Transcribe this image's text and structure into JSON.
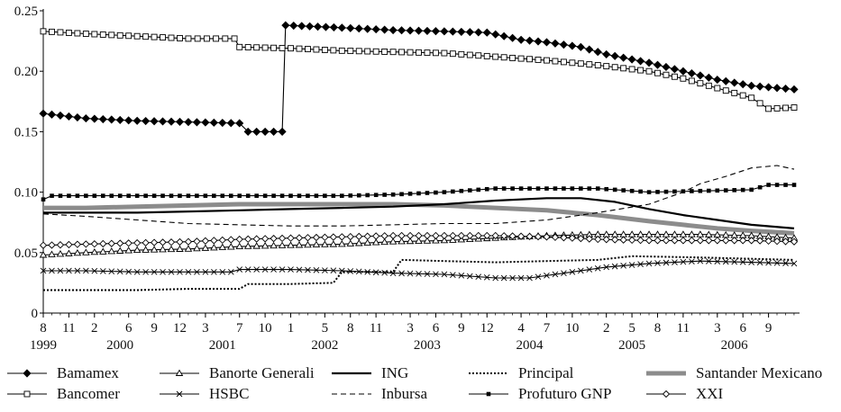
{
  "chart_data": {
    "type": "line",
    "title": "",
    "xlabel": "",
    "ylabel": "",
    "ylim": [
      0,
      0.25
    ],
    "y_ticks": [
      "0",
      "0.05",
      "0.10",
      "0.15",
      "0.20",
      "0.25"
    ],
    "grid": false,
    "legend_position": "bottom",
    "x_ticks": [
      {
        "label": "8",
        "t": 1999.583
      },
      {
        "label": "11",
        "t": 1999.833
      },
      {
        "label": "2",
        "t": 2000.083
      },
      {
        "label": "6",
        "t": 2000.417
      },
      {
        "label": "9",
        "t": 2000.667
      },
      {
        "label": "12",
        "t": 2000.917
      },
      {
        "label": "3",
        "t": 2001.167
      },
      {
        "label": "7",
        "t": 2001.5
      },
      {
        "label": "10",
        "t": 2001.75
      },
      {
        "label": "1",
        "t": 2002.0
      },
      {
        "label": "5",
        "t": 2002.333
      },
      {
        "label": "8",
        "t": 2002.583
      },
      {
        "label": "11",
        "t": 2002.833
      },
      {
        "label": "3",
        "t": 2003.167
      },
      {
        "label": "6",
        "t": 2003.417
      },
      {
        "label": "9",
        "t": 2003.667
      },
      {
        "label": "12",
        "t": 2003.917
      },
      {
        "label": "4",
        "t": 2004.25
      },
      {
        "label": "7",
        "t": 2004.5
      },
      {
        "label": "10",
        "t": 2004.75
      },
      {
        "label": "2",
        "t": 2005.083
      },
      {
        "label": "5",
        "t": 2005.333
      },
      {
        "label": "8",
        "t": 2005.583
      },
      {
        "label": "11",
        "t": 2005.833
      },
      {
        "label": "3",
        "t": 2006.167
      },
      {
        "label": "6",
        "t": 2006.417
      },
      {
        "label": "9",
        "t": 2006.667
      }
    ],
    "year_labels": [
      {
        "label": "1999",
        "t": 1999.583
      },
      {
        "label": "2000",
        "t": 2000.333
      },
      {
        "label": "2001",
        "t": 2001.333
      },
      {
        "label": "2002",
        "t": 2002.333
      },
      {
        "label": "2003",
        "t": 2003.333
      },
      {
        "label": "2004",
        "t": 2004.333
      },
      {
        "label": "2005",
        "t": 2005.333
      },
      {
        "label": "2006",
        "t": 2006.333
      }
    ],
    "x_range": [
      1999.583,
      2006.917
    ],
    "series": [
      {
        "name": "Bamamex",
        "style": "line-diamond-filled",
        "color": "#000000",
        "points": [
          [
            1999.583,
            0.165
          ],
          [
            2000.0,
            0.161
          ],
          [
            2000.5,
            0.159
          ],
          [
            2001.0,
            0.158
          ],
          [
            2001.5,
            0.157
          ],
          [
            2001.583,
            0.15
          ],
          [
            2001.917,
            0.15
          ],
          [
            2001.95,
            0.238
          ],
          [
            2002.5,
            0.236
          ],
          [
            2003.0,
            0.234
          ],
          [
            2003.5,
            0.233
          ],
          [
            2003.917,
            0.232
          ],
          [
            2004.25,
            0.226
          ],
          [
            2004.5,
            0.224
          ],
          [
            2004.833,
            0.22
          ],
          [
            2005.083,
            0.214
          ],
          [
            2005.5,
            0.207
          ],
          [
            2005.833,
            0.2
          ],
          [
            2006.167,
            0.193
          ],
          [
            2006.5,
            0.188
          ],
          [
            2006.917,
            0.185
          ]
        ]
      },
      {
        "name": "Bancomer",
        "style": "line-square-open",
        "color": "#000000",
        "points": [
          [
            1999.583,
            0.233
          ],
          [
            2000.0,
            0.231
          ],
          [
            2000.5,
            0.229
          ],
          [
            2001.0,
            0.227
          ],
          [
            2001.45,
            0.227
          ],
          [
            2001.5,
            0.22
          ],
          [
            2002.0,
            0.219
          ],
          [
            2002.5,
            0.217
          ],
          [
            2003.0,
            0.216
          ],
          [
            2003.5,
            0.215
          ],
          [
            2004.0,
            0.212
          ],
          [
            2004.5,
            0.209
          ],
          [
            2005.0,
            0.205
          ],
          [
            2005.5,
            0.2
          ],
          [
            2005.833,
            0.194
          ],
          [
            2006.167,
            0.186
          ],
          [
            2006.5,
            0.178
          ],
          [
            2006.667,
            0.169
          ],
          [
            2006.917,
            0.17
          ]
        ]
      },
      {
        "name": "Banorte Generali",
        "style": "line-triangle-open",
        "color": "#000000",
        "points": [
          [
            1999.583,
            0.048
          ],
          [
            2000.0,
            0.05
          ],
          [
            2000.5,
            0.052
          ],
          [
            2001.0,
            0.053
          ],
          [
            2001.5,
            0.055
          ],
          [
            2002.0,
            0.056
          ],
          [
            2002.5,
            0.057
          ],
          [
            2003.0,
            0.059
          ],
          [
            2003.5,
            0.06
          ],
          [
            2004.0,
            0.062
          ],
          [
            2004.5,
            0.064
          ],
          [
            2005.0,
            0.065
          ],
          [
            2005.5,
            0.065
          ],
          [
            2006.0,
            0.065
          ],
          [
            2006.5,
            0.064
          ],
          [
            2006.917,
            0.062
          ]
        ]
      },
      {
        "name": "HSBC",
        "style": "line-star",
        "color": "#000000",
        "points": [
          [
            1999.583,
            0.035
          ],
          [
            2000.0,
            0.035
          ],
          [
            2000.5,
            0.034
          ],
          [
            2001.0,
            0.034
          ],
          [
            2001.417,
            0.034
          ],
          [
            2001.5,
            0.036
          ],
          [
            2002.0,
            0.036
          ],
          [
            2002.5,
            0.035
          ],
          [
            2003.0,
            0.033
          ],
          [
            2003.5,
            0.032
          ],
          [
            2004.0,
            0.029
          ],
          [
            2004.333,
            0.029
          ],
          [
            2004.75,
            0.034
          ],
          [
            2005.083,
            0.038
          ],
          [
            2005.5,
            0.041
          ],
          [
            2006.0,
            0.043
          ],
          [
            2006.5,
            0.042
          ],
          [
            2006.917,
            0.041
          ]
        ]
      },
      {
        "name": "ING",
        "style": "line-solid",
        "color": "#000000",
        "points": [
          [
            1999.583,
            0.083
          ],
          [
            2000.0,
            0.083
          ],
          [
            2000.5,
            0.083
          ],
          [
            2001.0,
            0.084
          ],
          [
            2001.5,
            0.085
          ],
          [
            2002.0,
            0.086
          ],
          [
            2002.5,
            0.087
          ],
          [
            2003.0,
            0.088
          ],
          [
            2003.5,
            0.09
          ],
          [
            2004.0,
            0.093
          ],
          [
            2004.5,
            0.095
          ],
          [
            2004.833,
            0.095
          ],
          [
            2005.167,
            0.092
          ],
          [
            2005.5,
            0.086
          ],
          [
            2005.833,
            0.081
          ],
          [
            2006.167,
            0.077
          ],
          [
            2006.5,
            0.073
          ],
          [
            2006.917,
            0.07
          ]
        ]
      },
      {
        "name": "Inbursa",
        "style": "dashed",
        "color": "#000000",
        "points": [
          [
            1999.583,
            0.082
          ],
          [
            2000.0,
            0.08
          ],
          [
            2000.5,
            0.077
          ],
          [
            2001.0,
            0.074
          ],
          [
            2001.5,
            0.073
          ],
          [
            2002.0,
            0.072
          ],
          [
            2002.5,
            0.072
          ],
          [
            2003.0,
            0.073
          ],
          [
            2003.5,
            0.074
          ],
          [
            2004.0,
            0.074
          ],
          [
            2004.5,
            0.077
          ],
          [
            2005.0,
            0.083
          ],
          [
            2005.5,
            0.09
          ],
          [
            2005.833,
            0.1
          ],
          [
            2006.0,
            0.107
          ],
          [
            2006.25,
            0.113
          ],
          [
            2006.5,
            0.12
          ],
          [
            2006.75,
            0.122
          ],
          [
            2006.917,
            0.119
          ]
        ]
      },
      {
        "name": "Principal",
        "style": "dotted",
        "color": "#000000",
        "points": [
          [
            1999.583,
            0.019
          ],
          [
            2000.0,
            0.019
          ],
          [
            2000.5,
            0.019
          ],
          [
            2001.0,
            0.02
          ],
          [
            2001.5,
            0.02
          ],
          [
            2001.583,
            0.024
          ],
          [
            2002.0,
            0.024
          ],
          [
            2002.417,
            0.025
          ],
          [
            2002.5,
            0.034
          ],
          [
            2003.0,
            0.034
          ],
          [
            2003.083,
            0.044
          ],
          [
            2003.5,
            0.043
          ],
          [
            2004.0,
            0.042
          ],
          [
            2004.5,
            0.043
          ],
          [
            2005.0,
            0.044
          ],
          [
            2005.333,
            0.047
          ],
          [
            2006.0,
            0.046
          ],
          [
            2006.917,
            0.044
          ]
        ]
      },
      {
        "name": "Profuturo GNP",
        "style": "line-square-small",
        "color": "#000000",
        "points": [
          [
            1999.583,
            0.094
          ],
          [
            1999.667,
            0.097
          ],
          [
            2000.0,
            0.097
          ],
          [
            2000.5,
            0.097
          ],
          [
            2001.0,
            0.097
          ],
          [
            2001.5,
            0.097
          ],
          [
            2002.0,
            0.097
          ],
          [
            2002.5,
            0.097
          ],
          [
            2003.0,
            0.098
          ],
          [
            2003.5,
            0.1
          ],
          [
            2004.0,
            0.103
          ],
          [
            2004.5,
            0.103
          ],
          [
            2005.0,
            0.103
          ],
          [
            2005.5,
            0.1
          ],
          [
            2006.0,
            0.101
          ],
          [
            2006.5,
            0.102
          ],
          [
            2006.667,
            0.106
          ],
          [
            2006.917,
            0.106
          ]
        ]
      },
      {
        "name": "Santander Mexicano",
        "style": "thick-gray",
        "color": "#8c8c8c",
        "points": [
          [
            1999.583,
            0.087
          ],
          [
            2000.0,
            0.087
          ],
          [
            2000.5,
            0.088
          ],
          [
            2001.0,
            0.089
          ],
          [
            2001.5,
            0.09
          ],
          [
            2002.0,
            0.09
          ],
          [
            2002.5,
            0.09
          ],
          [
            2003.0,
            0.09
          ],
          [
            2003.5,
            0.089
          ],
          [
            2004.0,
            0.087
          ],
          [
            2004.5,
            0.085
          ],
          [
            2005.0,
            0.081
          ],
          [
            2005.5,
            0.076
          ],
          [
            2005.833,
            0.073
          ],
          [
            2006.167,
            0.07
          ],
          [
            2006.5,
            0.068
          ],
          [
            2006.917,
            0.066
          ]
        ]
      },
      {
        "name": "XXI",
        "style": "line-diamond-open",
        "color": "#000000",
        "points": [
          [
            1999.583,
            0.056
          ],
          [
            2000.0,
            0.057
          ],
          [
            2000.5,
            0.058
          ],
          [
            2001.0,
            0.059
          ],
          [
            2001.5,
            0.061
          ],
          [
            2002.0,
            0.062
          ],
          [
            2002.5,
            0.063
          ],
          [
            2003.0,
            0.064
          ],
          [
            2003.5,
            0.064
          ],
          [
            2004.0,
            0.064
          ],
          [
            2004.5,
            0.063
          ],
          [
            2005.0,
            0.061
          ],
          [
            2005.5,
            0.06
          ],
          [
            2006.0,
            0.06
          ],
          [
            2006.5,
            0.06
          ],
          [
            2006.917,
            0.059
          ]
        ]
      }
    ],
    "legend_rows": [
      [
        "Bamamex",
        "Banorte Generali",
        "ING",
        "Principal",
        "Santander Mexicano"
      ],
      [
        "Bancomer",
        "HSBC",
        "Inbursa",
        "Profuturo GNP",
        "XXI"
      ]
    ]
  }
}
